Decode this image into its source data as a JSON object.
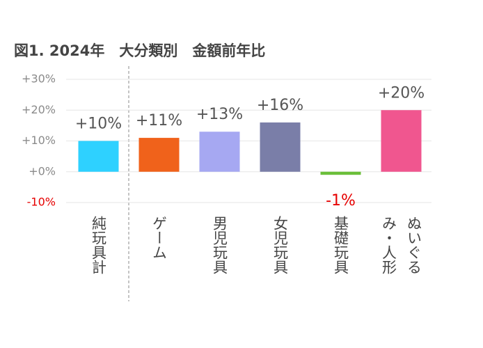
{
  "chart_data": {
    "type": "bar",
    "title": "図1. 2024年　大分類別　金額前年比",
    "categories": [
      "純玩具計",
      "ゲーム",
      "男児玩具",
      "女児玩具",
      "基礎玩具",
      "ぬいぐるみ・人形"
    ],
    "values": [
      10,
      11,
      13,
      16,
      -1,
      20
    ],
    "value_labels": [
      "+10%",
      "+11%",
      "+13%",
      "+16%",
      "-1%",
      "+20%"
    ],
    "colors": [
      "#2ed1ff",
      "#f0621b",
      "#a6a8f2",
      "#7a7ea8",
      "#6bbf3a",
      "#f0568f"
    ],
    "negative_label_color": "#e60000",
    "ylim": [
      -10,
      30
    ],
    "yticks": [
      {
        "value": 30,
        "label": "+30%"
      },
      {
        "value": 20,
        "label": "+20%"
      },
      {
        "value": 10,
        "label": "+10%"
      },
      {
        "value": 0,
        "label": "+0%"
      },
      {
        "value": -10,
        "label": "-10%"
      }
    ],
    "grid": true
  }
}
